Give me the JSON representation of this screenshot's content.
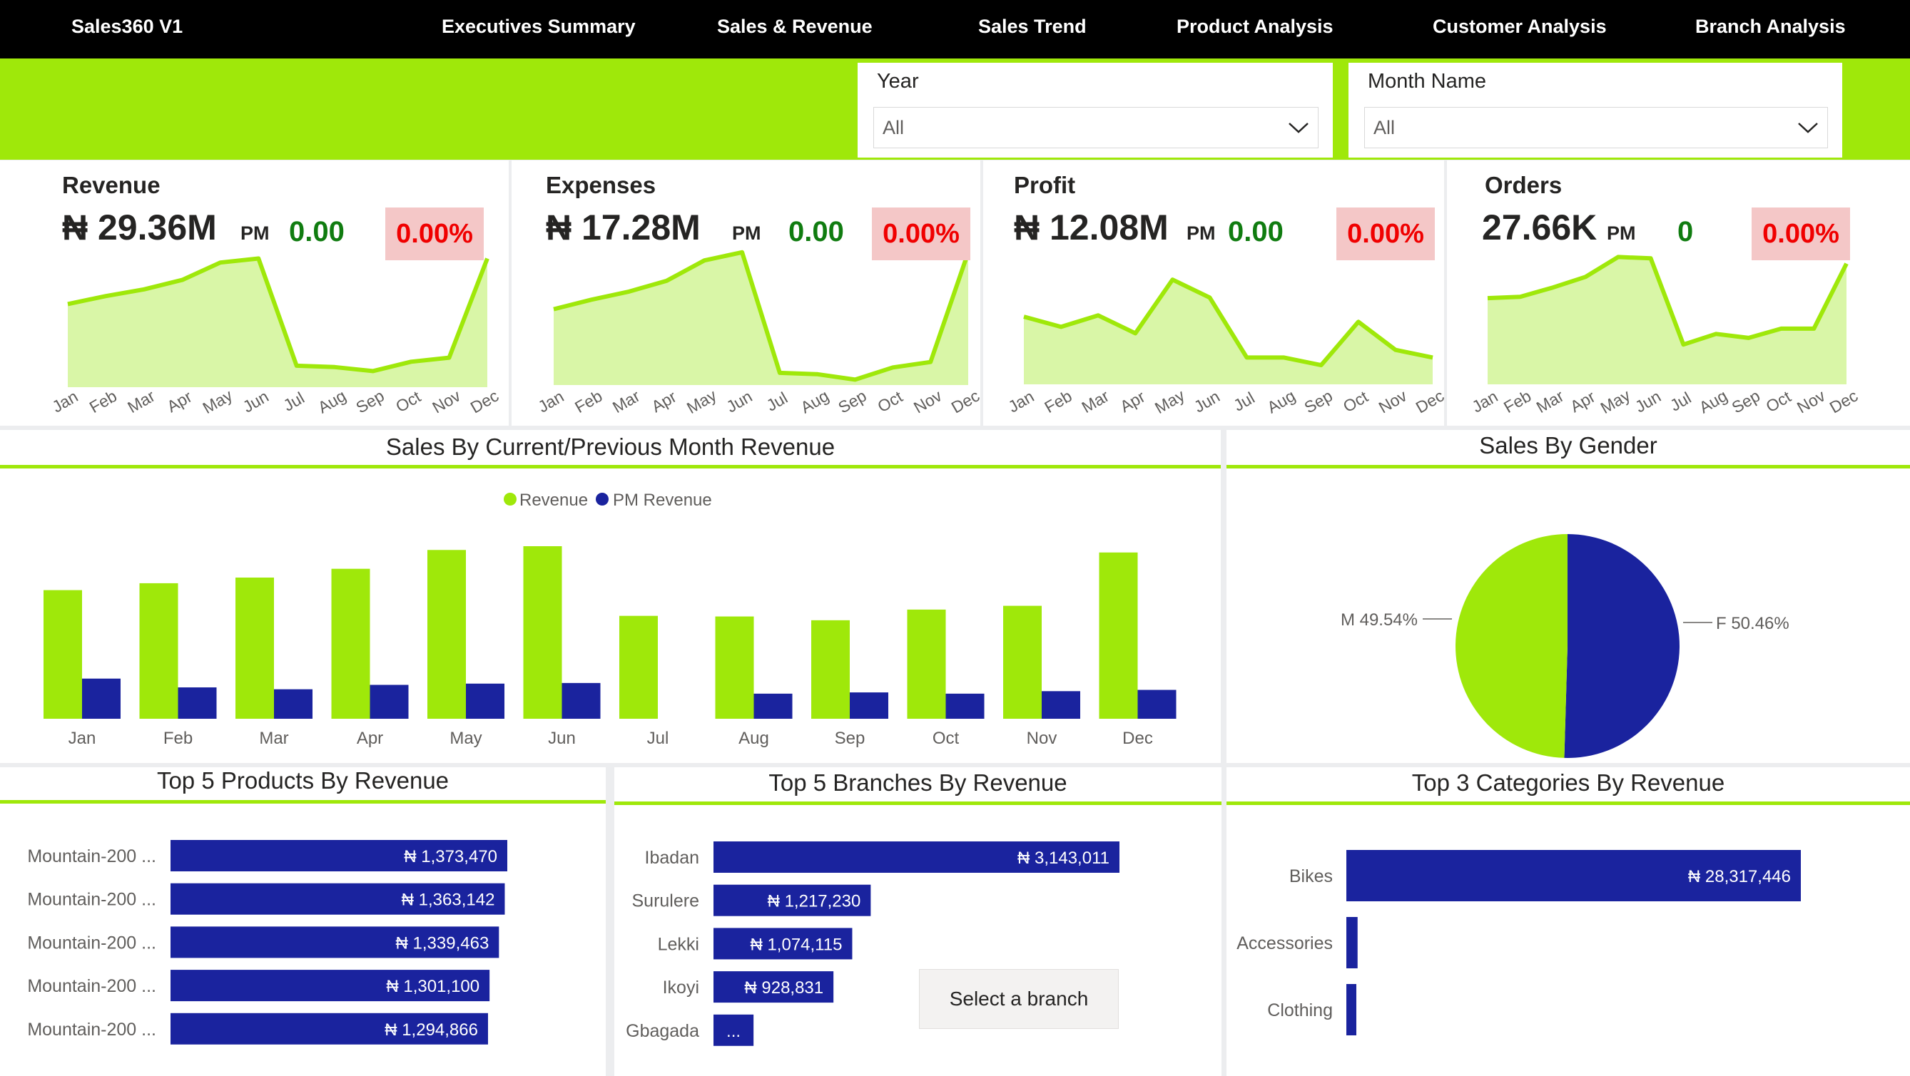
{
  "colors": {
    "accent": "#9fe80a",
    "navy": "#1a239e",
    "nav_bg": "#000000",
    "positive": "#107c10",
    "negative": "#f00000",
    "area_fill": "#d9f6a7",
    "badge_bg": "#f4c7c7"
  },
  "nav": {
    "brand": "Sales360 V1",
    "links": [
      "Executives Summary",
      "Sales & Revenue",
      "Sales Trend",
      "Product Analysis",
      "Customer Analysis",
      "Branch Analysis"
    ]
  },
  "filters": {
    "year": {
      "label": "Year",
      "value": "All"
    },
    "month": {
      "label": "Month Name",
      "value": "All"
    }
  },
  "months_short": [
    "Jan",
    "Feb",
    "Mar",
    "Apr",
    "May",
    "Jun",
    "Jul",
    "Aug",
    "Sep",
    "Oct",
    "Nov",
    "Dec"
  ],
  "kpis": [
    {
      "title": "Revenue",
      "value": "₦ 29.36M",
      "pm_label": "PM",
      "pm_value": "0.00",
      "pct": "0.00%",
      "trend": [
        62,
        68,
        73,
        80,
        93,
        96,
        16,
        15,
        12,
        19,
        22,
        96
      ]
    },
    {
      "title": "Expenses",
      "value": "₦ 17.28M",
      "pm_label": "PM",
      "pm_value": "0.00",
      "pct": "0.00%",
      "trend": [
        56,
        63,
        69,
        77,
        92,
        98,
        9,
        8,
        4,
        13,
        17,
        98
      ]
    },
    {
      "title": "Profit",
      "value": "₦ 12.08M",
      "pm_label": "PM",
      "pm_value": "0.00",
      "pct": "0.00%",
      "trend": [
        53,
        45,
        54,
        40,
        82,
        68,
        21,
        21,
        15,
        49,
        27,
        21
      ]
    },
    {
      "title": "Orders",
      "value": "27.66K",
      "pm_label": "PM",
      "pm_value": "0",
      "pct": "0.00%",
      "trend": [
        65,
        66,
        73,
        81,
        96,
        95,
        30,
        38,
        35,
        42,
        42,
        91
      ]
    }
  ],
  "sales_by_month": {
    "title": "Sales By Current/Previous Month Revenue",
    "legend": [
      "Revenue",
      "PM Revenue"
    ],
    "revenue": [
      2.05,
      2.16,
      2.25,
      2.39,
      2.69,
      2.75,
      1.64,
      1.63,
      1.57,
      1.74,
      1.8,
      2.65
    ],
    "pm_revenue": [
      0.64,
      0.5,
      0.47,
      0.54,
      0.56,
      0.57,
      0,
      0.4,
      0.42,
      0.4,
      0.44,
      0.46
    ]
  },
  "gender": {
    "title": "Sales By Gender",
    "slices": [
      {
        "label": "M 49.54%",
        "value": 49.54
      },
      {
        "label": "F 50.46%",
        "value": 50.46
      }
    ]
  },
  "top_products": {
    "title": "Top 5 Products By Revenue",
    "rows": [
      {
        "name": "Mountain-200 ...",
        "label": "₦ 1,373,470",
        "value": 1373470
      },
      {
        "name": "Mountain-200 ...",
        "label": "₦ 1,363,142",
        "value": 1363142
      },
      {
        "name": "Mountain-200 ...",
        "label": "₦ 1,339,463",
        "value": 1339463
      },
      {
        "name": "Mountain-200 ...",
        "label": "₦ 1,301,100",
        "value": 1301100
      },
      {
        "name": "Mountain-200 ...",
        "label": "₦ 1,294,866",
        "value": 1294866
      }
    ]
  },
  "top_branches": {
    "title": "Top 5 Branches By Revenue",
    "rows": [
      {
        "name": "Ibadan",
        "label": "₦ 3,143,011",
        "value": 3143011
      },
      {
        "name": "Surulere",
        "label": "₦ 1,217,230",
        "value": 1217230
      },
      {
        "name": "Lekki",
        "label": "₦ 1,074,115",
        "value": 1074115
      },
      {
        "name": "Ikoyi",
        "label": "₦ 928,831",
        "value": 928831
      },
      {
        "name": "Gbagada",
        "label": "...",
        "value": 310000
      }
    ],
    "select_label": "Select a branch"
  },
  "top_categories": {
    "title": "Top 3 Categories By Revenue",
    "rows": [
      {
        "name": "Bikes",
        "label": "₦ 28,317,446",
        "value": 28317446
      },
      {
        "name": "Accessories",
        "label": "",
        "value": 700000
      },
      {
        "name": "Clothing",
        "label": "",
        "value": 340000
      }
    ]
  },
  "chart_data": [
    {
      "type": "bar",
      "title": "Sales By Current/Previous Month Revenue",
      "categories": [
        "Jan",
        "Feb",
        "Mar",
        "Apr",
        "May",
        "Jun",
        "Jul",
        "Aug",
        "Sep",
        "Oct",
        "Nov",
        "Dec"
      ],
      "series": [
        {
          "name": "Revenue",
          "values": [
            2.05,
            2.16,
            2.25,
            2.39,
            2.69,
            2.75,
            1.64,
            1.63,
            1.57,
            1.74,
            1.8,
            2.65
          ]
        },
        {
          "name": "PM Revenue",
          "values": [
            0.64,
            0.5,
            0.47,
            0.54,
            0.56,
            0.57,
            0,
            0.4,
            0.42,
            0.4,
            0.44,
            0.46
          ]
        }
      ]
    },
    {
      "type": "pie",
      "title": "Sales By Gender",
      "categories": [
        "M",
        "F"
      ],
      "values": [
        49.54,
        50.46
      ]
    },
    {
      "type": "bar",
      "title": "Top 5 Products By Revenue",
      "categories": [
        "Mountain-200 ...",
        "Mountain-200 ...",
        "Mountain-200 ...",
        "Mountain-200 ...",
        "Mountain-200 ..."
      ],
      "values": [
        1373470,
        1363142,
        1339463,
        1301100,
        1294866
      ]
    },
    {
      "type": "bar",
      "title": "Top 5 Branches By Revenue",
      "categories": [
        "Ibadan",
        "Surulere",
        "Lekki",
        "Ikoyi",
        "Gbagada"
      ],
      "values": [
        3143011,
        1217230,
        1074115,
        928831,
        310000
      ]
    },
    {
      "type": "bar",
      "title": "Top 3 Categories By Revenue",
      "categories": [
        "Bikes",
        "Accessories",
        "Clothing"
      ],
      "values": [
        28317446,
        700000,
        340000
      ]
    }
  ]
}
